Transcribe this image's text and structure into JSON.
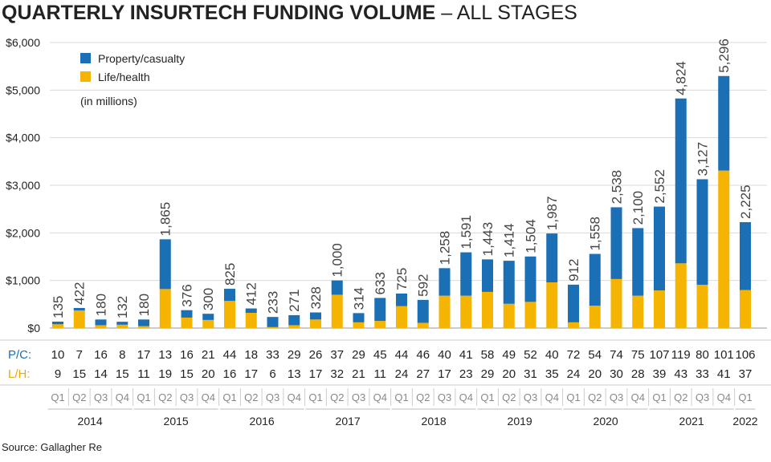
{
  "title": {
    "bold": "QUARTERLY INSURTECH FUNDING VOLUME",
    "light": " – ALL STAGES"
  },
  "legend": {
    "pc_label": "Property/casualty",
    "lh_label": "Life/health",
    "note": "(in millions)"
  },
  "table": {
    "pc_row_label": "P/C:",
    "lh_row_label": "L/H:"
  },
  "source": "Source: Gallagher Re",
  "colors": {
    "pc": "#1a6fb5",
    "lh": "#f5b400",
    "grid": "#d9d9d9"
  },
  "chart_data": {
    "type": "bar",
    "stacked": true,
    "ylim": [
      0,
      6000
    ],
    "yticks": [
      0,
      1000,
      2000,
      3000,
      4000,
      5000,
      6000
    ],
    "ytick_labels": [
      "$0",
      "$1,000",
      "$2,000",
      "$3,000",
      "$4,000",
      "$5,000",
      "$6,000"
    ],
    "grid": true,
    "legend_position": "top-left",
    "categories": [
      "Q1",
      "Q2",
      "Q3",
      "Q4",
      "Q1",
      "Q2",
      "Q3",
      "Q4",
      "Q1",
      "Q2",
      "Q3",
      "Q4",
      "Q1",
      "Q2",
      "Q3",
      "Q4",
      "Q1",
      "Q2",
      "Q3",
      "Q4",
      "Q1",
      "Q2",
      "Q3",
      "Q4",
      "Q1",
      "Q2",
      "Q3",
      "Q4",
      "Q1",
      "Q2",
      "Q3",
      "Q4",
      "Q1"
    ],
    "years": [
      {
        "label": "2014",
        "start": 0,
        "count": 4
      },
      {
        "label": "2015",
        "start": 4,
        "count": 4
      },
      {
        "label": "2016",
        "start": 8,
        "count": 4
      },
      {
        "label": "2017",
        "start": 12,
        "count": 4
      },
      {
        "label": "2018",
        "start": 16,
        "count": 4
      },
      {
        "label": "2019",
        "start": 20,
        "count": 4
      },
      {
        "label": "2020",
        "start": 24,
        "count": 4
      },
      {
        "label": "2021",
        "start": 28,
        "count": 4
      },
      {
        "label": "2022",
        "start": 32,
        "count": 1
      }
    ],
    "series": [
      {
        "name": "Life/health",
        "values": [
          80,
          370,
          60,
          70,
          40,
          820,
          220,
          170,
          570,
          320,
          20,
          60,
          180,
          700,
          120,
          150,
          460,
          110,
          680,
          680,
          760,
          510,
          550,
          960,
          120,
          470,
          1030,
          680,
          790,
          1360,
          910,
          3310,
          800
        ]
      },
      {
        "name": "Property/casualty",
        "values": [
          55,
          52,
          120,
          62,
          140,
          1045,
          156,
          130,
          255,
          92,
          213,
          211,
          148,
          300,
          194,
          483,
          265,
          482,
          578,
          911,
          683,
          904,
          954,
          1027,
          792,
          1088,
          1508,
          1420,
          1762,
          3464,
          2217,
          1986,
          1425
        ]
      }
    ],
    "totals": [
      "135",
      "422",
      "180",
      "132",
      "180",
      "1,865",
      "376",
      "300",
      "825",
      "412",
      "233",
      "271",
      "328",
      "1,000",
      "314",
      "633",
      "725",
      "592",
      "1,258",
      "1,591",
      "1,443",
      "1,414",
      "1,504",
      "1,987",
      "912",
      "1,558",
      "2,538",
      "2,100",
      "2,552",
      "4,824",
      "3,127",
      "5,296",
      "2,225"
    ],
    "deal_counts_pc": [
      10,
      7,
      16,
      8,
      17,
      13,
      16,
      21,
      44,
      18,
      33,
      29,
      26,
      37,
      29,
      45,
      44,
      46,
      40,
      41,
      58,
      49,
      52,
      40,
      72,
      54,
      74,
      75,
      107,
      119,
      80,
      101,
      106
    ],
    "deal_counts_lh": [
      9,
      15,
      14,
      15,
      11,
      19,
      15,
      20,
      16,
      17,
      6,
      13,
      17,
      32,
      21,
      11,
      24,
      27,
      17,
      23,
      29,
      20,
      31,
      35,
      24,
      20,
      30,
      28,
      39,
      43,
      33,
      41,
      37
    ]
  }
}
